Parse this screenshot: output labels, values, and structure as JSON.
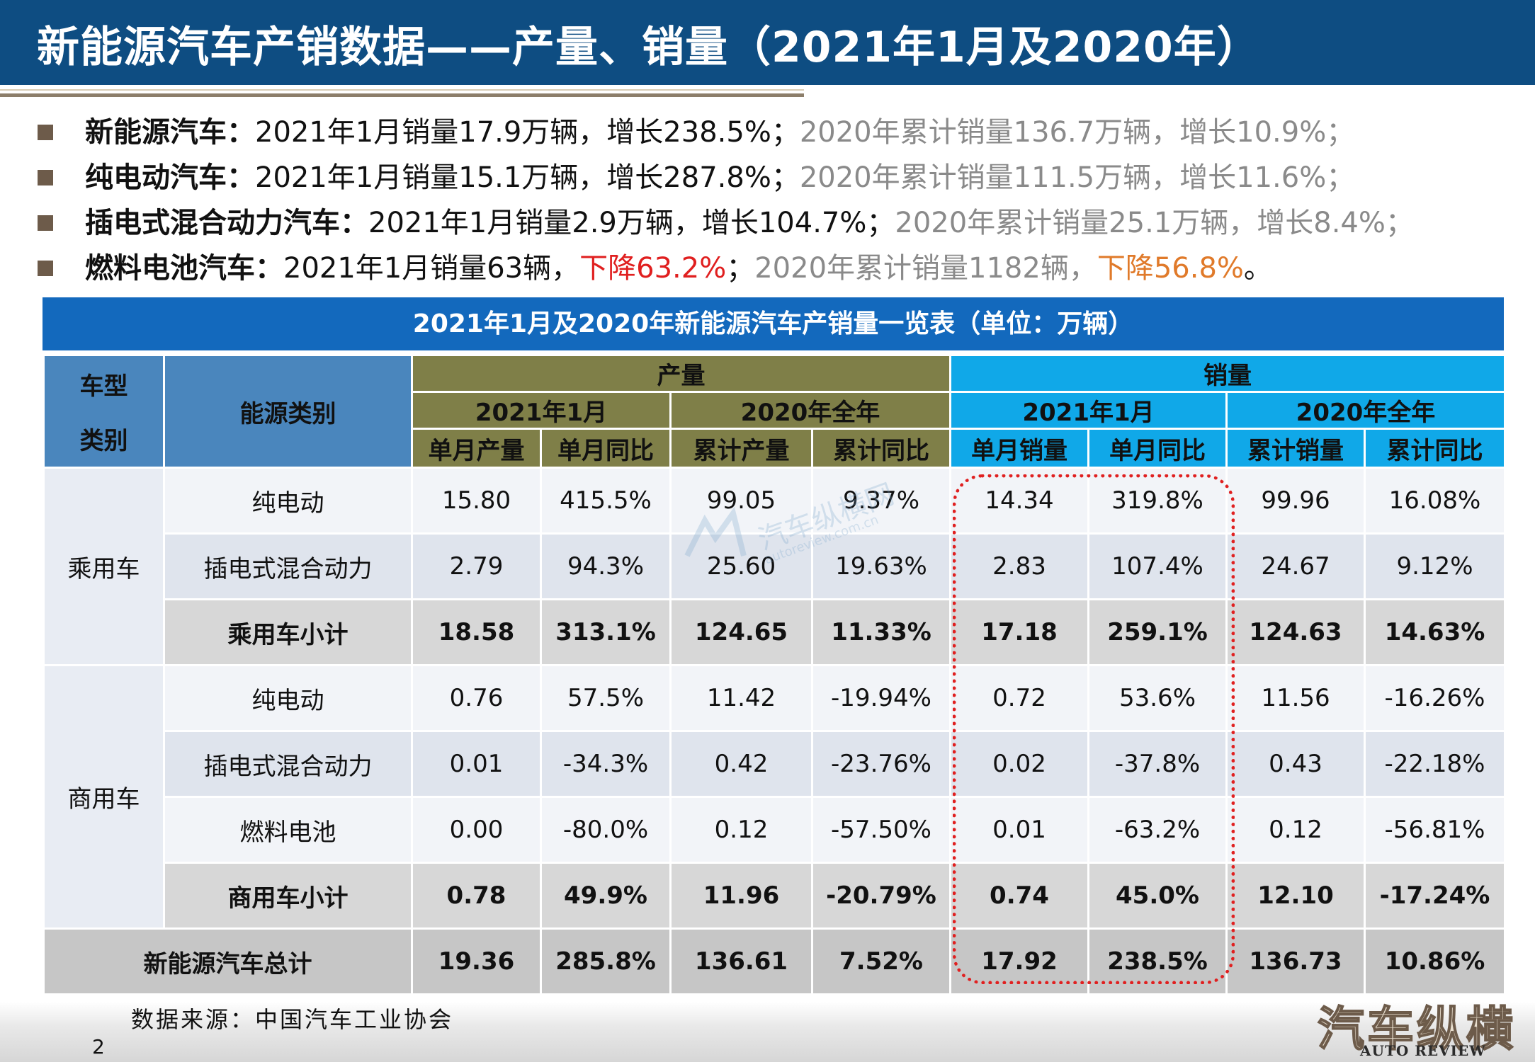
{
  "title": "新能源汽车产销数据——产量、销量（2021年1月及2020年）",
  "bullets": [
    {
      "label": "新能源汽车：",
      "seg1": "2021年1月销量17.9万辆，增长238.5%；",
      "seg2": "2020年累计销量136.7万辆，增长10.9%；"
    },
    {
      "label": "纯电动汽车：",
      "seg1": "2021年1月销量15.1万辆，增长287.8%；",
      "seg2": "2020年累计销量111.5万辆，增长11.6%；"
    },
    {
      "label": "插电式混合动力汽车：",
      "seg1": "2021年1月销量2.9万辆，增长104.7%；",
      "seg2": "2020年累计销量25.1万辆，增长8.4%；"
    },
    {
      "label": "燃料电池汽车：",
      "seg1": "2021年1月销量63辆，",
      "seg1_red": "下降63.2%",
      "seg1_end": "；",
      "seg2": "2020年累计销量1182辆，",
      "seg2_orange": "下降56.8%",
      "seg2_end": "。"
    }
  ],
  "table": {
    "caption": "2021年1月及2020年新能源汽车产销量一览表（单位：万辆）",
    "header": {
      "col_type_1": "车型",
      "col_type_2": "类别",
      "col_energy": "能源类别",
      "production": "产量",
      "sales": "销量",
      "month": "2021年1月",
      "year": "2020年全年",
      "sub": [
        "单月产量",
        "单月同比",
        "累计产量",
        "累计同比",
        "单月销量",
        "单月同比",
        "累计销量",
        "累计同比"
      ]
    },
    "groups": {
      "passenger": "乘用车",
      "commercial": "商用车"
    },
    "rows": [
      {
        "energy": "纯电动",
        "cells": [
          "15.80",
          "415.5%",
          "99.05",
          "9.37%",
          "14.34",
          "319.8%",
          "99.96",
          "16.08%"
        ]
      },
      {
        "energy": "插电式混合动力",
        "cells": [
          "2.79",
          "94.3%",
          "25.60",
          "19.63%",
          "2.83",
          "107.4%",
          "24.67",
          "9.12%"
        ]
      },
      {
        "energy": "乘用车小计",
        "cells": [
          "18.58",
          "313.1%",
          "124.65",
          "11.33%",
          "17.18",
          "259.1%",
          "124.63",
          "14.63%"
        ]
      },
      {
        "energy": "纯电动",
        "cells": [
          "0.76",
          "57.5%",
          "11.42",
          "-19.94%",
          "0.72",
          "53.6%",
          "11.56",
          "-16.26%"
        ]
      },
      {
        "energy": "插电式混合动力",
        "cells": [
          "0.01",
          "-34.3%",
          "0.42",
          "-23.76%",
          "0.02",
          "-37.8%",
          "0.43",
          "-22.18%"
        ]
      },
      {
        "energy": "燃料电池",
        "cells": [
          "0.00",
          "-80.0%",
          "0.12",
          "-57.50%",
          "0.01",
          "-63.2%",
          "0.12",
          "-56.81%"
        ]
      },
      {
        "energy": "商用车小计",
        "cells": [
          "0.78",
          "49.9%",
          "11.96",
          "-20.79%",
          "0.74",
          "45.0%",
          "12.10",
          "-17.24%"
        ]
      },
      {
        "energy": "新能源汽车总计",
        "cells": [
          "19.36",
          "285.8%",
          "136.61",
          "7.52%",
          "17.92",
          "238.5%",
          "136.73",
          "10.86%"
        ]
      }
    ]
  },
  "watermark": {
    "text": "汽车纵横网",
    "sub": "autoreview.com.cn"
  },
  "source": "数据来源：中国汽车工业协会",
  "page_number": "2",
  "logo": {
    "cn": "汽车纵横",
    "en": "AUTO REVIEW"
  },
  "colors": {
    "title_bar": "#0e4d82",
    "caption": "#1369bd",
    "header_blue": "#4a86bd",
    "header_olive": "#7f7f48",
    "header_cyan": "#10a8e8",
    "highlight": "#e02020",
    "negative_red": "#e01f1f",
    "negative_orange": "#e0732a"
  }
}
